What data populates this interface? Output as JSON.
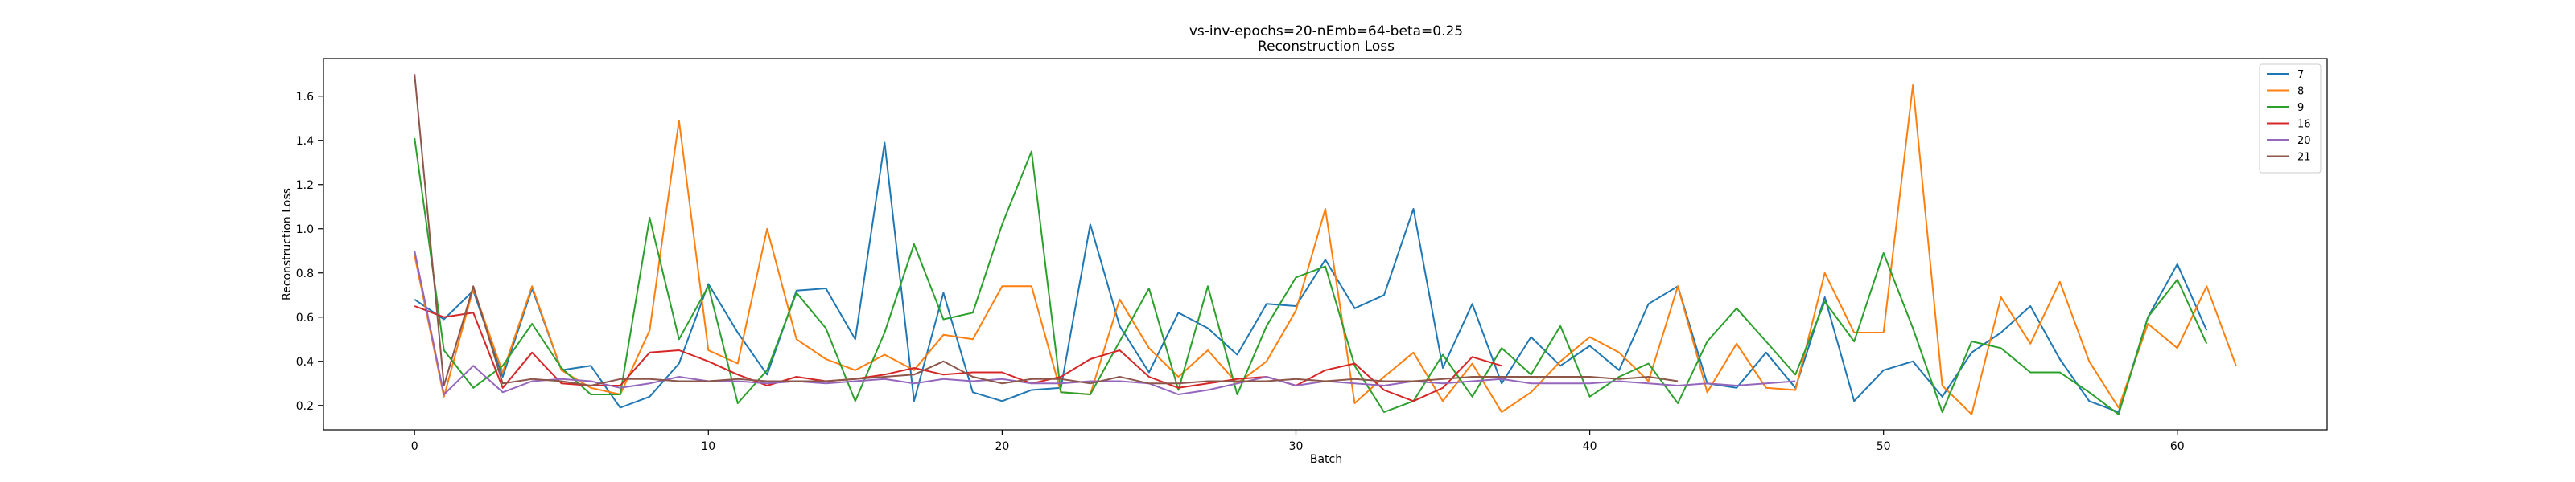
{
  "chart_data": {
    "type": "line",
    "title": "vs-inv-epochs=20-nEmb=64-beta=0.25",
    "subtitle": "Reconstruction Loss",
    "xlabel": "Batch",
    "ylabel": "Reconstruction Loss",
    "xlim": [
      -3.1,
      65.1
    ],
    "ylim": [
      0.09,
      1.77
    ],
    "xticks": [
      0,
      10,
      20,
      30,
      40,
      50,
      60
    ],
    "yticks": [
      0.2,
      0.4,
      0.6,
      0.8,
      1.0,
      1.2,
      1.4,
      1.6
    ],
    "grid": false,
    "legend_position": "top-right",
    "series": [
      {
        "name": "7",
        "color": "#1f77b4",
        "values": [
          0.68,
          0.59,
          0.72,
          0.33,
          0.73,
          0.36,
          0.38,
          0.19,
          0.24,
          0.39,
          0.75,
          0.53,
          0.34,
          0.72,
          0.73,
          0.5,
          1.39,
          0.22,
          0.71,
          0.26,
          0.22,
          0.27,
          0.28,
          1.02,
          0.56,
          0.35,
          0.62,
          0.55,
          0.43,
          0.66,
          0.65,
          0.86,
          0.64,
          0.7,
          1.09,
          0.37,
          0.66,
          0.3,
          0.51,
          0.38,
          0.47,
          0.36,
          0.66,
          0.74,
          0.3,
          0.28,
          0.44,
          0.28,
          0.69,
          0.22,
          0.36,
          0.4,
          0.24,
          0.44,
          0.53,
          0.65,
          0.41,
          0.22,
          0.17,
          0.6,
          0.84,
          0.54
        ]
      },
      {
        "name": "8",
        "color": "#ff7f0e",
        "values": [
          0.88,
          0.24,
          0.73,
          0.35,
          0.74,
          0.36,
          0.28,
          0.25,
          0.54,
          1.49,
          0.45,
          0.39,
          1.0,
          0.5,
          0.41,
          0.36,
          0.43,
          0.36,
          0.52,
          0.5,
          0.74,
          0.74,
          0.26,
          0.25,
          0.68,
          0.46,
          0.33,
          0.45,
          0.3,
          0.4,
          0.63,
          1.09,
          0.21,
          0.33,
          0.44,
          0.22,
          0.39,
          0.17,
          0.26,
          0.4,
          0.51,
          0.44,
          0.31,
          0.74,
          0.26,
          0.48,
          0.28,
          0.27,
          0.8,
          0.53,
          0.53,
          1.65,
          0.29,
          0.16,
          0.69,
          0.48,
          0.76,
          0.4,
          0.19,
          0.57,
          0.46,
          0.74,
          0.38
        ]
      },
      {
        "name": "9",
        "color": "#2ca02c",
        "values": [
          1.41,
          0.45,
          0.28,
          0.38,
          0.57,
          0.37,
          0.25,
          0.25,
          1.05,
          0.5,
          0.74,
          0.21,
          0.36,
          0.71,
          0.55,
          0.22,
          0.53,
          0.93,
          0.59,
          0.62,
          1.02,
          1.35,
          0.26,
          0.25,
          0.49,
          0.73,
          0.27,
          0.74,
          0.25,
          0.56,
          0.78,
          0.83,
          0.38,
          0.17,
          0.22,
          0.43,
          0.24,
          0.46,
          0.34,
          0.56,
          0.24,
          0.33,
          0.39,
          0.21,
          0.49,
          0.64,
          0.49,
          0.34,
          0.67,
          0.49,
          0.89,
          0.55,
          0.17,
          0.49,
          0.46,
          0.35,
          0.35,
          0.26,
          0.16,
          0.6,
          0.77,
          0.48
        ]
      },
      {
        "name": "16",
        "color": "#d62728",
        "values": [
          0.65,
          0.6,
          0.62,
          0.28,
          0.44,
          0.3,
          0.29,
          0.29,
          0.44,
          0.45,
          0.4,
          0.34,
          0.29,
          0.33,
          0.31,
          0.32,
          0.34,
          0.37,
          0.34,
          0.35,
          0.35,
          0.3,
          0.33,
          0.41,
          0.45,
          0.33,
          0.28,
          0.3,
          0.32,
          0.33,
          0.29,
          0.36,
          0.39,
          0.27,
          0.22,
          0.28,
          0.42,
          0.38
        ]
      },
      {
        "name": "20",
        "color": "#9467bd",
        "values": [
          0.9,
          0.25,
          0.38,
          0.26,
          0.31,
          0.32,
          0.31,
          0.28,
          0.3,
          0.33,
          0.31,
          0.31,
          0.3,
          0.31,
          0.3,
          0.31,
          0.32,
          0.3,
          0.32,
          0.31,
          0.32,
          0.3,
          0.3,
          0.31,
          0.31,
          0.3,
          0.25,
          0.27,
          0.3,
          0.33,
          0.29,
          0.31,
          0.3,
          0.29,
          0.31,
          0.3,
          0.31,
          0.32,
          0.3,
          0.3,
          0.3,
          0.31,
          0.3,
          0.29,
          0.3,
          0.29,
          0.3,
          0.31
        ]
      },
      {
        "name": "21",
        "color": "#8c564b",
        "values": [
          1.7,
          0.29,
          0.74,
          0.3,
          0.32,
          0.31,
          0.29,
          0.32,
          0.32,
          0.31,
          0.31,
          0.32,
          0.31,
          0.31,
          0.31,
          0.32,
          0.33,
          0.34,
          0.4,
          0.33,
          0.3,
          0.32,
          0.32,
          0.3,
          0.33,
          0.3,
          0.3,
          0.31,
          0.31,
          0.31,
          0.32,
          0.31,
          0.32,
          0.31,
          0.31,
          0.32,
          0.33,
          0.33,
          0.33,
          0.33,
          0.33,
          0.32,
          0.33,
          0.31
        ]
      }
    ]
  }
}
